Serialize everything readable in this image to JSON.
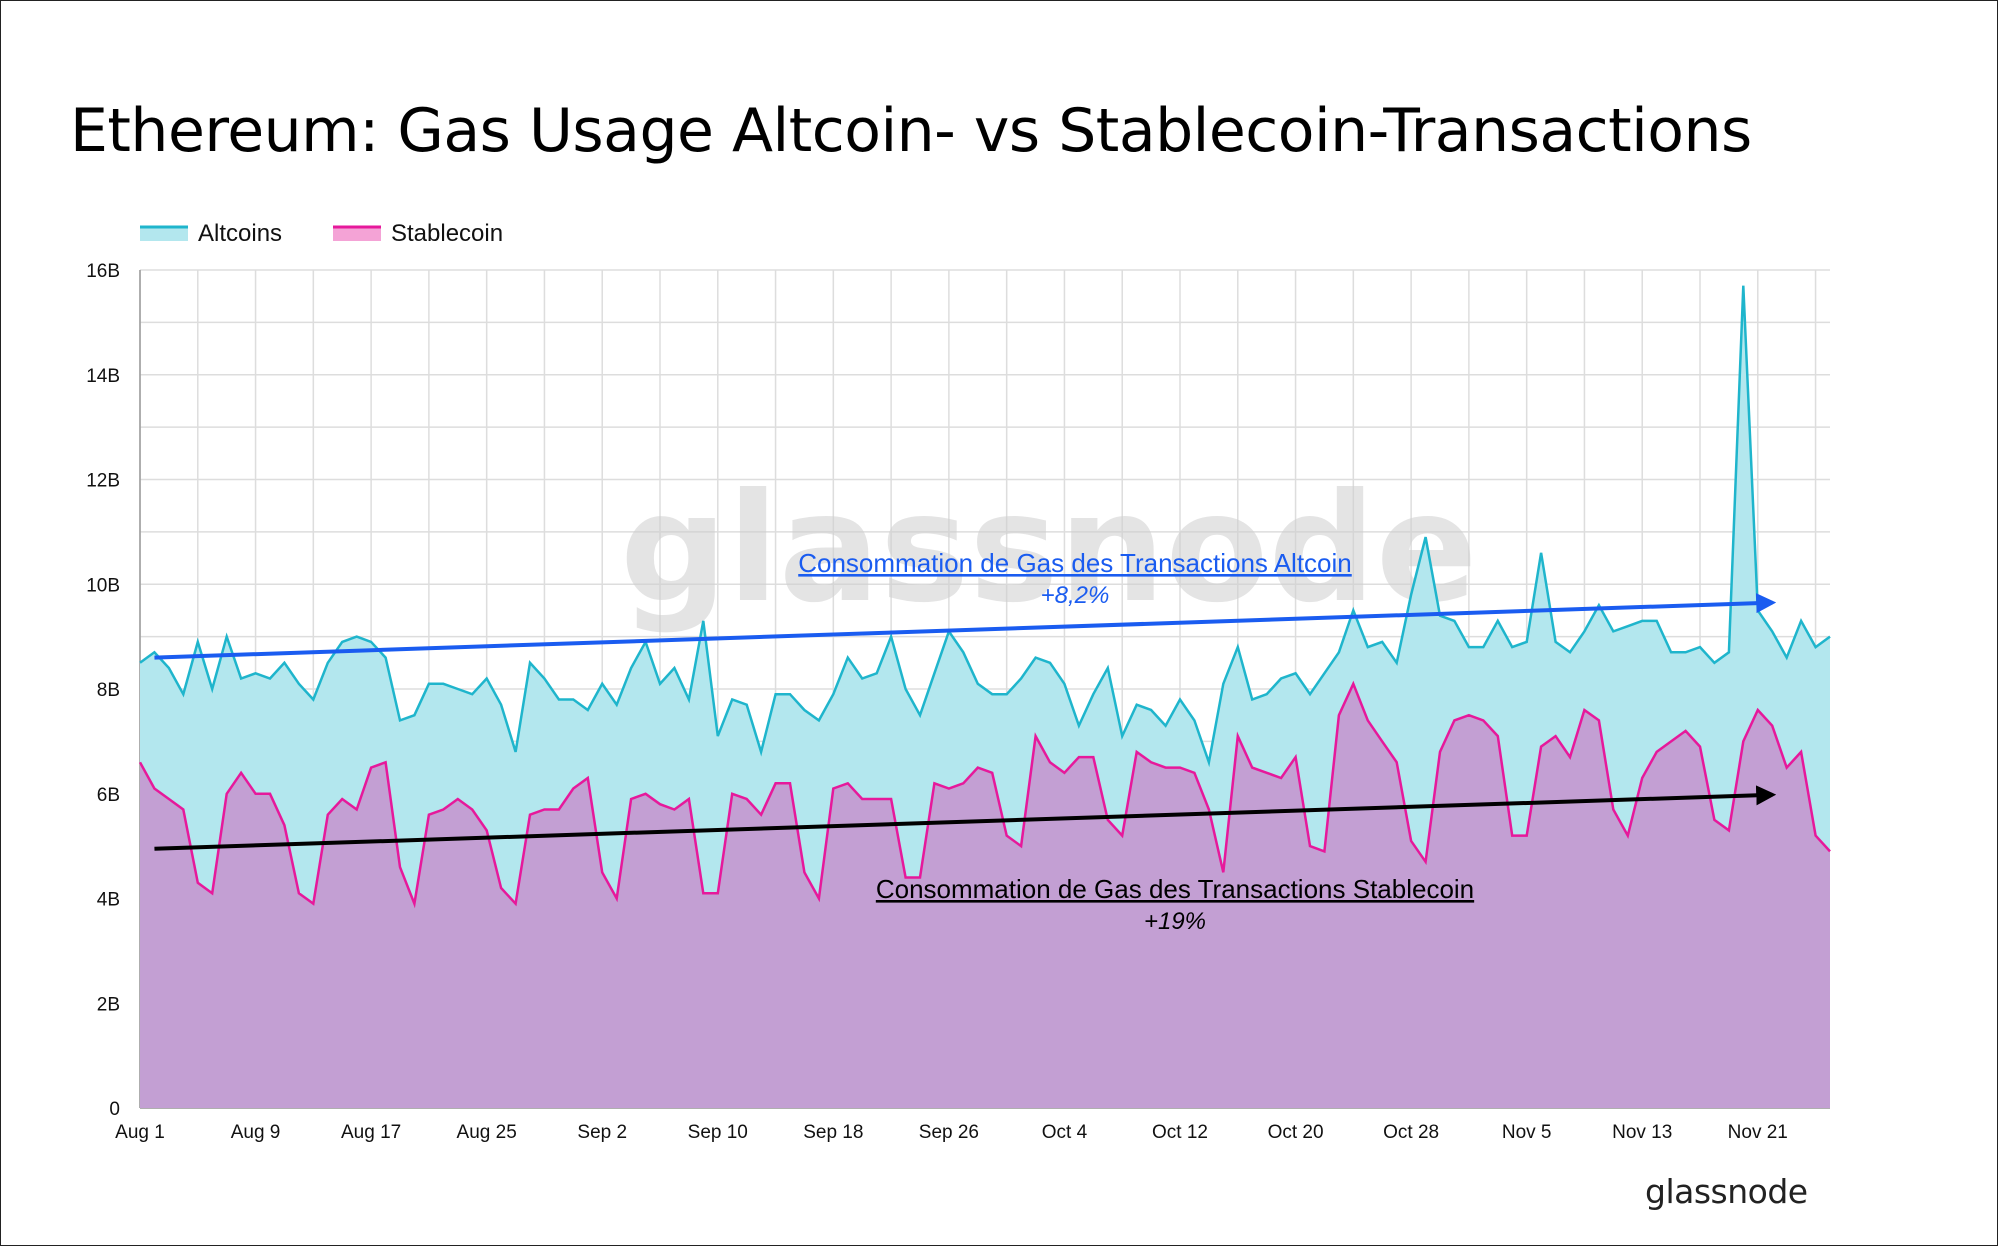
{
  "page": {
    "title": "Ethereum: Gas Usage Altcoin- vs Stablecoin-Transactions",
    "brand": "glassnode",
    "watermark": "glassnode"
  },
  "colors": {
    "altcoin_line": "#1fb5cc",
    "altcoin_fill": "#b3e7ee",
    "stable_line": "#e6199b",
    "stable_fill": "#c39fd3",
    "altcoin_trend": "#1a5cf0",
    "stable_trend": "#000000",
    "grid": "#dddddd"
  },
  "chart_data": {
    "type": "area",
    "title": "Ethereum: Gas Usage Altcoin- vs Stablecoin-Transactions",
    "x_start": "Aug 1",
    "x_step_days": 1,
    "x_ticks": [
      "Aug 1",
      "Aug 9",
      "Aug 17",
      "Aug 25",
      "Sep 2",
      "Sep 10",
      "Sep 18",
      "Sep 26",
      "Oct 4",
      "Oct 12",
      "Oct 20",
      "Oct 28",
      "Nov 5",
      "Nov 13",
      "Nov 21"
    ],
    "y_ticks": [
      "0",
      "2B",
      "4B",
      "6B",
      "8B",
      "10B",
      "12B",
      "14B",
      "16B"
    ],
    "ylim": [
      0,
      16
    ],
    "y_unit": "B",
    "grid": true,
    "legend_position": "top-left",
    "series": [
      {
        "name": "Altcoins",
        "values": [
          8.5,
          8.7,
          8.4,
          7.9,
          8.9,
          8.0,
          9.0,
          8.2,
          8.3,
          8.2,
          8.5,
          8.1,
          7.8,
          8.5,
          8.9,
          9.0,
          8.9,
          8.6,
          7.4,
          7.5,
          8.1,
          8.1,
          8.0,
          7.9,
          8.2,
          7.7,
          6.8,
          8.5,
          8.2,
          7.8,
          7.8,
          7.6,
          8.1,
          7.7,
          8.4,
          8.9,
          8.1,
          8.4,
          7.8,
          9.3,
          7.1,
          7.8,
          7.7,
          6.8,
          7.9,
          7.9,
          7.6,
          7.4,
          7.9,
          8.6,
          8.2,
          8.3,
          9.0,
          8.0,
          7.5,
          8.3,
          9.1,
          8.7,
          8.1,
          7.9,
          7.9,
          8.2,
          8.6,
          8.5,
          8.1,
          7.3,
          7.9,
          8.4,
          7.1,
          7.7,
          7.6,
          7.3,
          7.8,
          7.4,
          6.6,
          8.1,
          8.8,
          7.8,
          7.9,
          8.2,
          8.3,
          7.9,
          8.3,
          8.7,
          9.5,
          8.8,
          8.9,
          8.5,
          9.8,
          10.9,
          9.4,
          9.3,
          8.8,
          8.8,
          9.3,
          8.8,
          8.9,
          10.6,
          8.9,
          8.7,
          9.1,
          9.6,
          9.1,
          9.2,
          9.3,
          9.3,
          8.7,
          8.7,
          8.8,
          8.5,
          8.7,
          15.7,
          9.5,
          9.1,
          8.6,
          9.3,
          8.8,
          9.0
        ]
      },
      {
        "name": "Stablecoin",
        "values": [
          6.6,
          6.1,
          5.9,
          5.7,
          4.3,
          4.1,
          6.0,
          6.4,
          6.0,
          6.0,
          5.4,
          4.1,
          3.9,
          5.6,
          5.9,
          5.7,
          6.5,
          6.6,
          4.6,
          3.9,
          5.6,
          5.7,
          5.9,
          5.7,
          5.3,
          4.2,
          3.9,
          5.6,
          5.7,
          5.7,
          6.1,
          6.3,
          4.5,
          4.0,
          5.9,
          6.0,
          5.8,
          5.7,
          5.9,
          4.1,
          4.1,
          6.0,
          5.9,
          5.6,
          6.2,
          6.2,
          4.5,
          4.0,
          6.1,
          6.2,
          5.9,
          5.9,
          5.9,
          4.4,
          4.4,
          6.2,
          6.1,
          6.2,
          6.5,
          6.4,
          5.2,
          5.0,
          7.1,
          6.6,
          6.4,
          6.7,
          6.7,
          5.5,
          5.2,
          6.8,
          6.6,
          6.5,
          6.5,
          6.4,
          5.7,
          4.5,
          7.1,
          6.5,
          6.4,
          6.3,
          6.7,
          5.0,
          4.9,
          7.5,
          8.1,
          7.4,
          7.0,
          6.6,
          5.1,
          4.7,
          6.8,
          7.4,
          7.5,
          7.4,
          7.1,
          5.2,
          5.2,
          6.9,
          7.1,
          6.7,
          7.6,
          7.4,
          5.7,
          5.2,
          6.3,
          6.8,
          7.0,
          7.2,
          6.9,
          5.5,
          5.3,
          7.0,
          7.6,
          7.3,
          6.5,
          6.8,
          5.2,
          4.9
        ]
      }
    ],
    "annotations": [
      {
        "text": "Consommation de Gas des Transactions Altcoin",
        "subtext": "+8,2%",
        "series": "Altcoins",
        "trend_from": {
          "x": "Aug 2",
          "y": 8.6
        },
        "trend_to": {
          "x": "Nov 22",
          "y": 9.65
        }
      },
      {
        "text": "Consommation de Gas des Transactions Stablecoin",
        "subtext": "+19%",
        "series": "Stablecoin",
        "trend_from": {
          "x": "Aug 2",
          "y": 4.95
        },
        "trend_to": {
          "x": "Nov 22",
          "y": 5.98
        }
      }
    ]
  }
}
